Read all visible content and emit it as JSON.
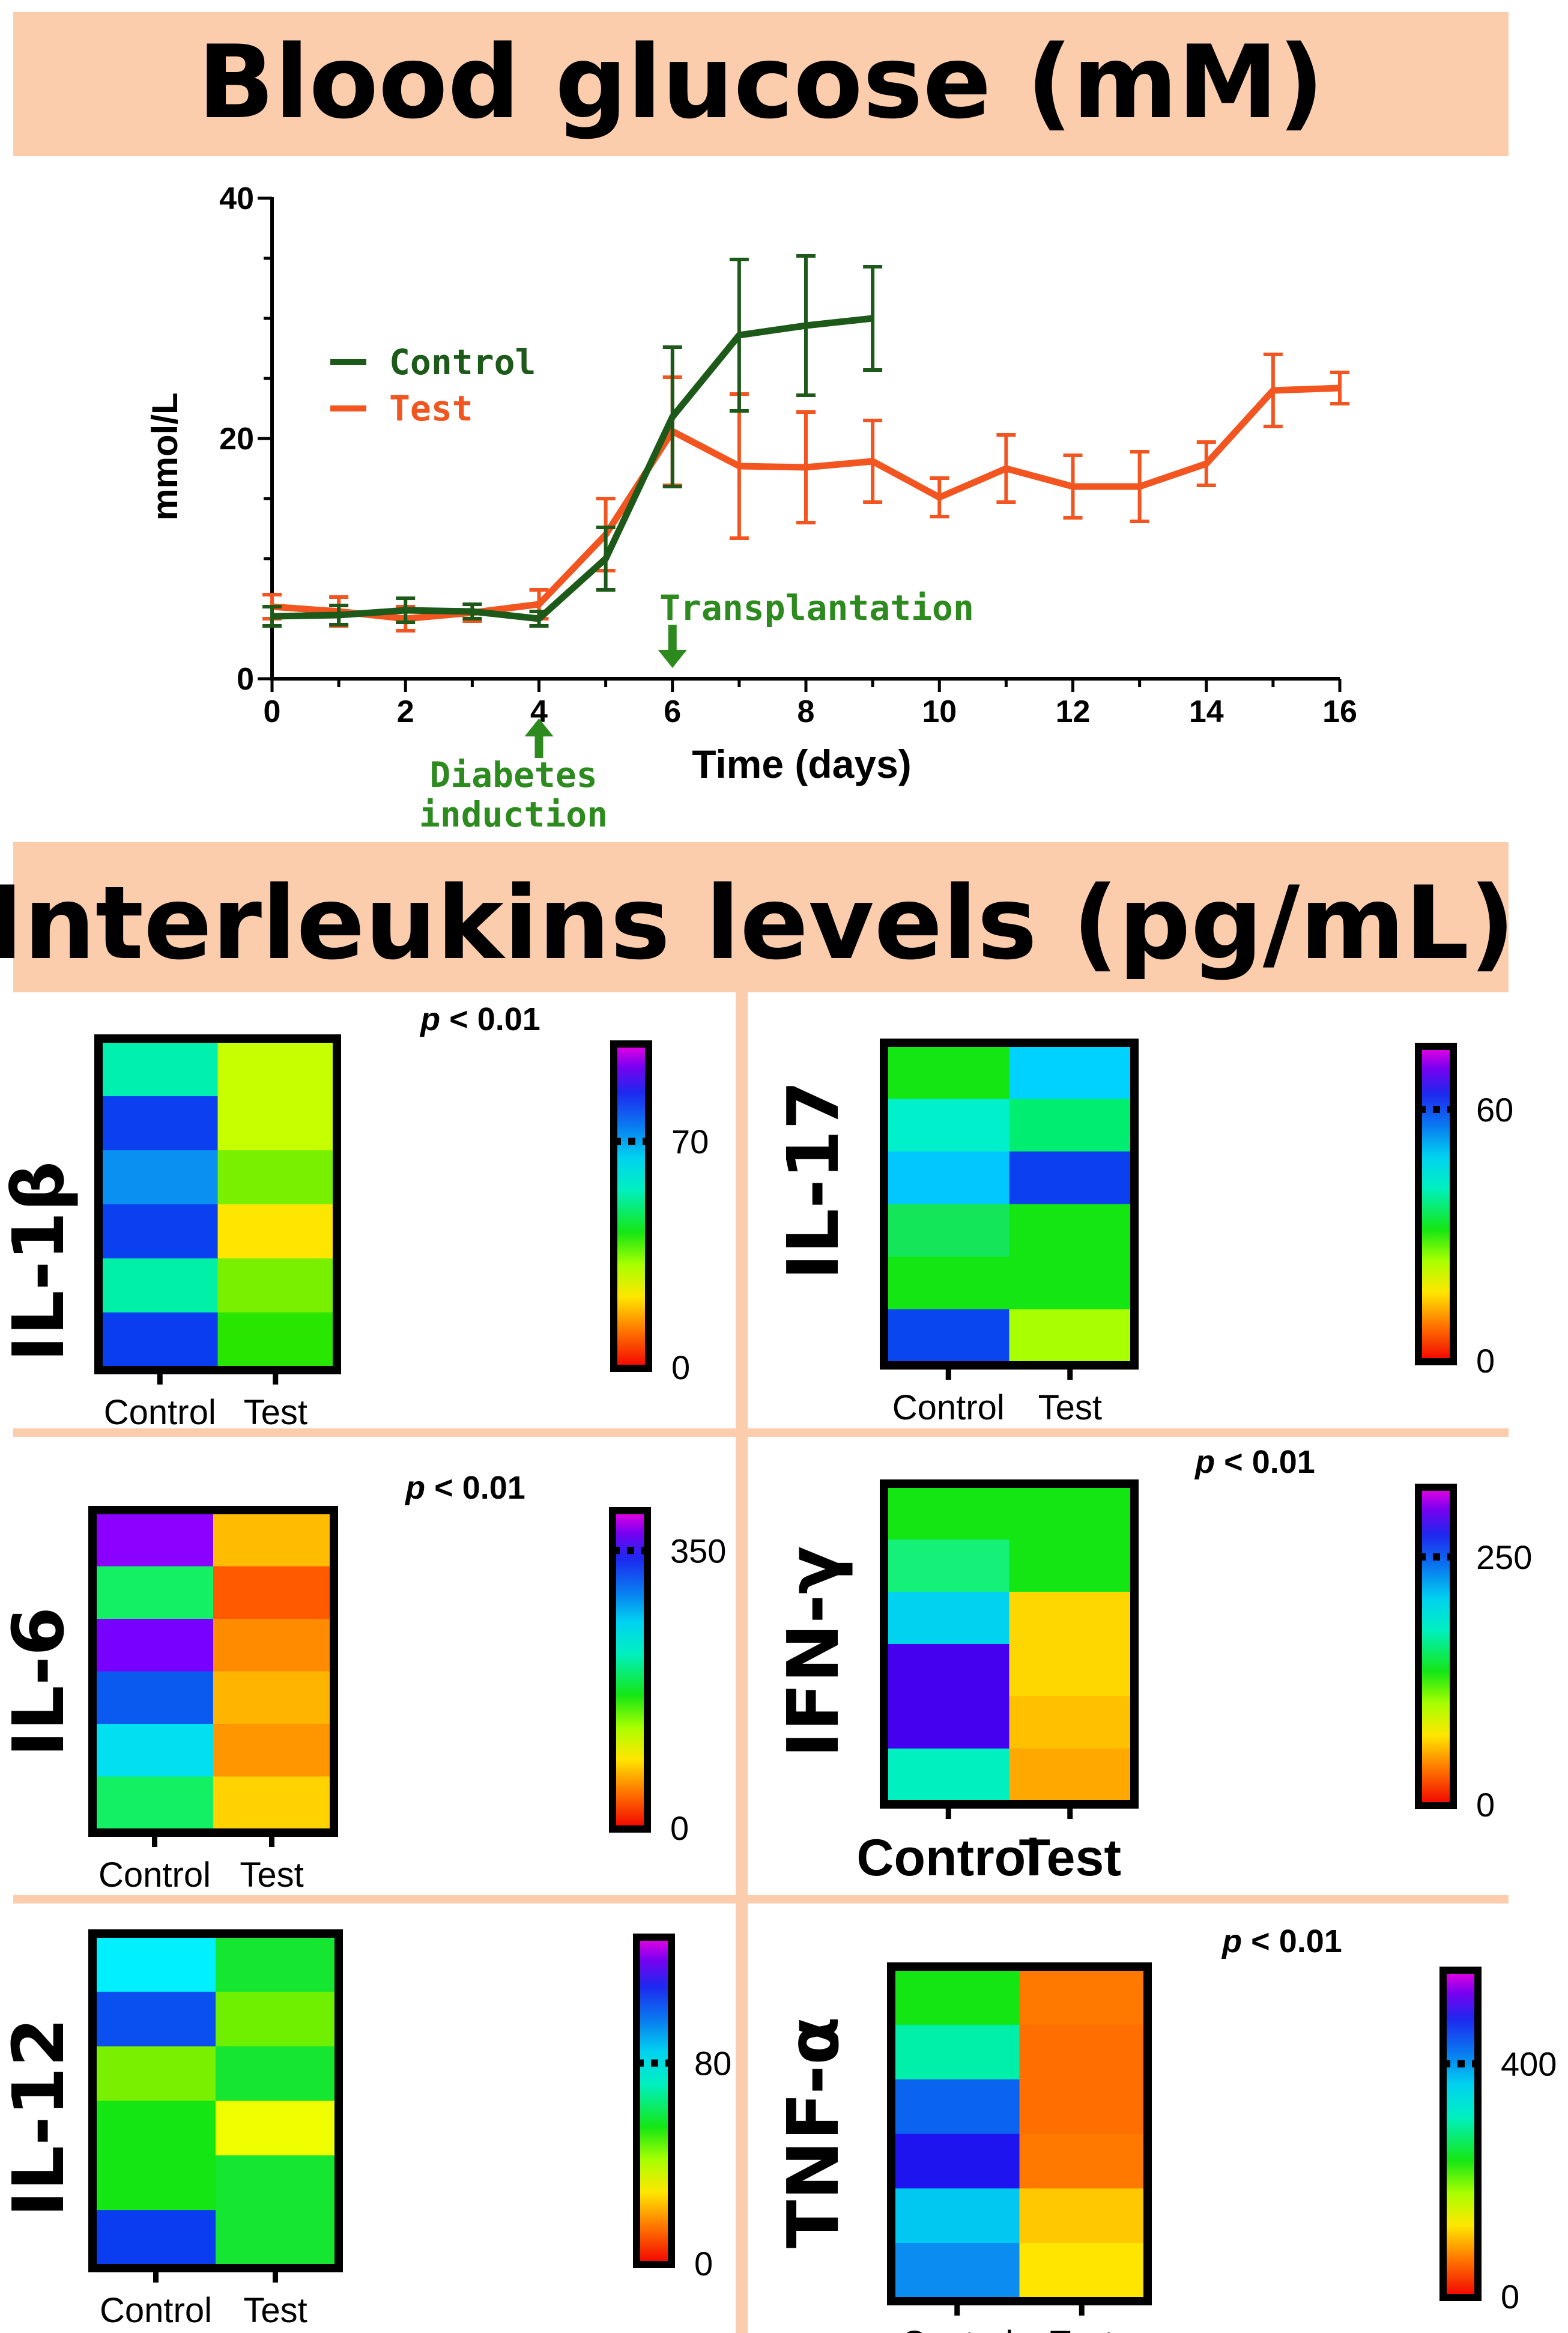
{
  "colors": {
    "banner": "#FCCDAD",
    "control": "#1D5A1A",
    "test": "#F2551F",
    "annotation": "#2D8A1E"
  },
  "chart_data": [
    {
      "type": "line",
      "title": "Blood glucose (mM)",
      "xlabel": "Time (days)",
      "ylabel": "mmol/L",
      "xlim": [
        0,
        16
      ],
      "ylim": [
        0,
        40
      ],
      "xticks": [
        "0",
        "2",
        "4",
        "6",
        "8",
        "10",
        "12",
        "14",
        "16"
      ],
      "yticks": [
        "0",
        "20",
        "40"
      ],
      "legend_position": "upper-left",
      "series": [
        {
          "name": "Control",
          "color": "#1D5A1A",
          "x": [
            0,
            1,
            2,
            3,
            4,
            5,
            6,
            7,
            8,
            9
          ],
          "y": [
            5.2,
            5.3,
            5.7,
            5.6,
            5.0,
            10.0,
            21.8,
            28.6,
            29.4,
            30.0
          ],
          "err": [
            0.8,
            0.8,
            1.0,
            0.6,
            0.6,
            2.6,
            5.8,
            6.3,
            5.8,
            4.3
          ]
        },
        {
          "name": "Test",
          "color": "#F2551F",
          "x": [
            0,
            1,
            2,
            3,
            4,
            5,
            6,
            7,
            8,
            9,
            10,
            11,
            12,
            13,
            14,
            15,
            16
          ],
          "y": [
            6.0,
            5.6,
            5.0,
            5.5,
            6.2,
            12.0,
            20.6,
            17.7,
            17.6,
            18.1,
            15.1,
            17.5,
            16.0,
            16.0,
            17.9,
            24.0,
            24.2
          ],
          "err": [
            1.0,
            1.2,
            1.0,
            0.7,
            1.2,
            3.0,
            4.5,
            6.0,
            4.6,
            3.4,
            1.6,
            2.8,
            2.6,
            2.9,
            1.8,
            3.0,
            1.3
          ]
        }
      ],
      "annotations": [
        {
          "text": "Transplantation",
          "x": 6,
          "arrow": "down"
        },
        {
          "text": "Diabetes",
          "text2": "induction",
          "x": 4,
          "arrow": "up"
        }
      ]
    },
    {
      "type": "heatmap",
      "section_title": "Interleukins levels (pg/mL)",
      "panels": [
        {
          "name": "IL-1β",
          "categories": [
            "Control",
            "Test"
          ],
          "pvalue": "p < 0.01",
          "colorbar_max": 100,
          "colorbar_tick": 70,
          "colorbar_zero": "0",
          "colorbar_label": "70",
          "colors": [
            [
              "#00F0B0",
              "#C8FF00"
            ],
            [
              "#0A40F0",
              "#C8FF00"
            ],
            [
              "#0A90F0",
              "#78F000"
            ],
            [
              "#0A40F0",
              "#FFE600"
            ],
            [
              "#00F0A8",
              "#78F000"
            ],
            [
              "#0A3CF0",
              "#28E600"
            ]
          ]
        },
        {
          "name": "IL-17",
          "categories": [
            "Control",
            "Test"
          ],
          "pvalue": "",
          "colorbar_max": 75,
          "colorbar_tick": 60,
          "colorbar_zero": "0",
          "colorbar_label": "60",
          "colors": [
            [
              "#14E614",
              "#00D2FF"
            ],
            [
              "#00F0CC",
              "#00EE70"
            ],
            [
              "#00C8FF",
              "#0A40F0"
            ],
            [
              "#14E65A",
              "#14E614"
            ],
            [
              "#14E614",
              "#14E614"
            ],
            [
              "#0A46F0",
              "#A8FF00"
            ]
          ]
        },
        {
          "name": "IL-6",
          "categories": [
            "Control",
            "Test"
          ],
          "pvalue": "p < 0.01",
          "colorbar_max": 400,
          "colorbar_tick": 350,
          "colorbar_zero": "0",
          "colorbar_label": "350",
          "colors": [
            [
              "#8C00FF",
              "#FFBC00"
            ],
            [
              "#14F064",
              "#FF5A00"
            ],
            [
              "#7800FF",
              "#FF8C00"
            ],
            [
              "#0A5AF0",
              "#FFB400"
            ],
            [
              "#00E0F0",
              "#FF9600"
            ],
            [
              "#14F064",
              "#FFD200"
            ]
          ]
        },
        {
          "name": "IFN-γ",
          "categories": [
            "Control",
            "Test"
          ],
          "pvalue": "p < 0.01",
          "colorbar_max": 320,
          "colorbar_tick": 250,
          "colorbar_zero": "0",
          "colorbar_label": "250",
          "colors": [
            [
              "#14E614",
              "#14E614"
            ],
            [
              "#14F078",
              "#14E614"
            ],
            [
              "#00D2F0",
              "#FFD700"
            ],
            [
              "#4600F0",
              "#FFD700"
            ],
            [
              "#4600F0",
              "#FFC000"
            ],
            [
              "#00F0C0",
              "#FFA800"
            ]
          ]
        },
        {
          "name": "IL-12",
          "categories": [
            "Control",
            "Test"
          ],
          "pvalue": "",
          "colorbar_max": 130,
          "colorbar_tick": 80,
          "colorbar_zero": "0",
          "colorbar_label": "80",
          "colors": [
            [
              "#00F0FF",
              "#14E632"
            ],
            [
              "#0A50F0",
              "#6EF000"
            ],
            [
              "#78F000",
              "#14E632"
            ],
            [
              "#14E614",
              "#F0FF00"
            ],
            [
              "#14E614",
              "#14E632"
            ],
            [
              "#0A3CF0",
              "#14E632"
            ]
          ]
        },
        {
          "name": "TNF-α",
          "categories": [
            "Control",
            "Test"
          ],
          "pvalue": "p < 0.01",
          "colorbar_max": 560,
          "colorbar_tick": 400,
          "colorbar_zero": "0",
          "colorbar_label": "400",
          "colors": [
            [
              "#14E614",
              "#FF7800"
            ],
            [
              "#00F0AA",
              "#FF6E00"
            ],
            [
              "#0A64F0",
              "#FF6E00"
            ],
            [
              "#1E14F0",
              "#FF7800"
            ],
            [
              "#00C8F0",
              "#FFC800"
            ],
            [
              "#0A8CF0",
              "#FFE600"
            ]
          ]
        }
      ]
    }
  ]
}
